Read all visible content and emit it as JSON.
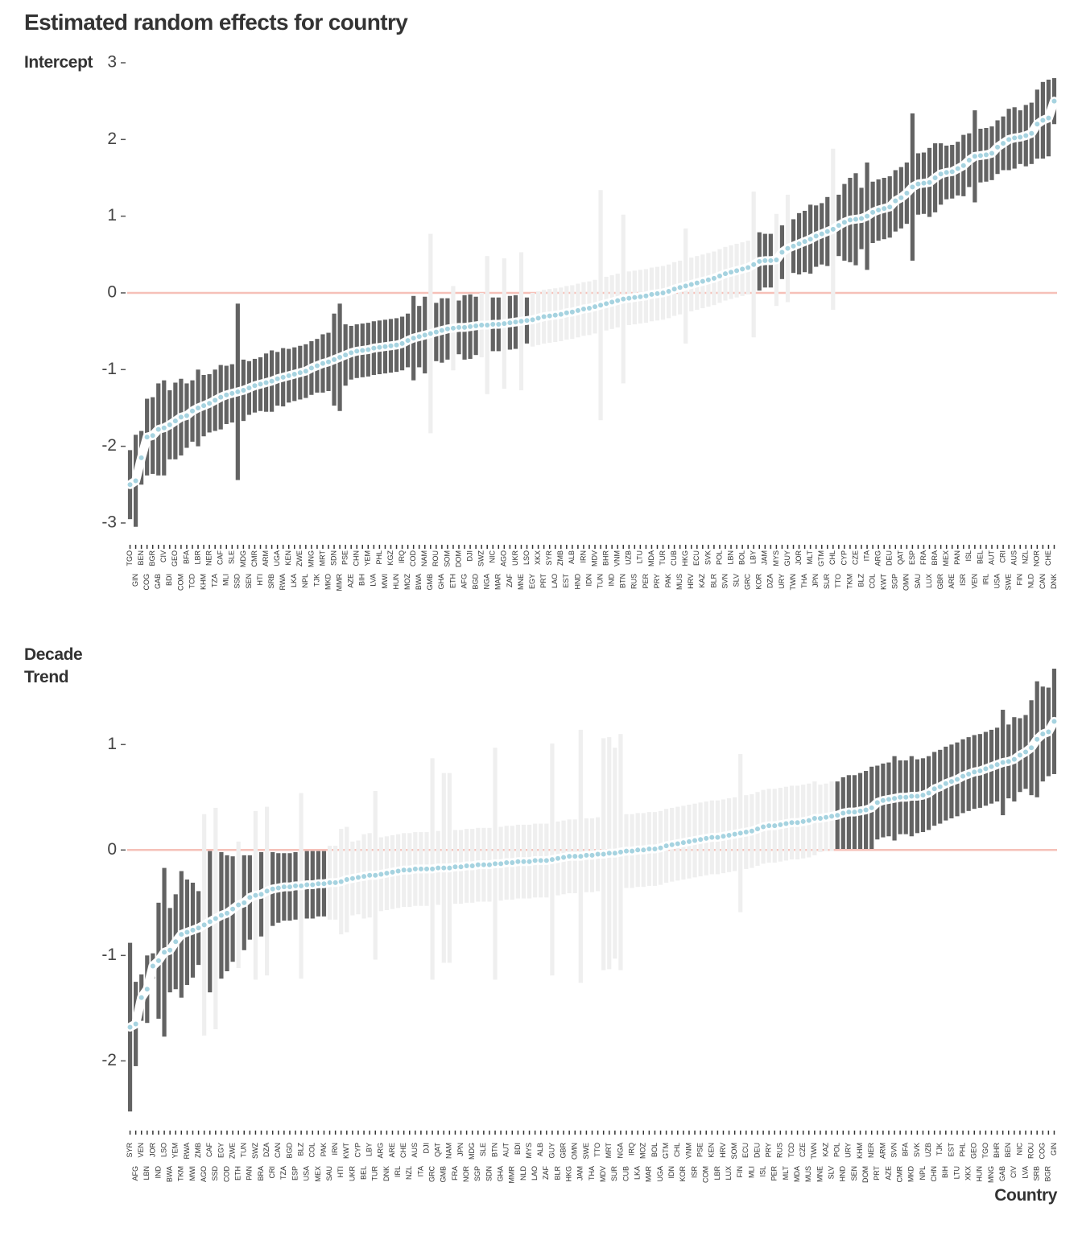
{
  "title": "Estimated random effects for country",
  "chart_data": [
    {
      "type": "point-range",
      "y_label": "Intercept",
      "ylim": [
        -3.2,
        3.0
      ],
      "yticks": [
        -3,
        -2,
        -1,
        0,
        1,
        2,
        3
      ],
      "color_significant": "#636363",
      "color_nonsignificant": "#efefef",
      "point_color": "#a6d3e0",
      "reference_color": "#f6c0b8",
      "categories": [
        "TGO",
        "GIN",
        "BEN",
        "COG",
        "BGR",
        "GAB",
        "CIV",
        "BDI",
        "GEO",
        "COM",
        "BFA",
        "TCD",
        "LBR",
        "KHM",
        "NER",
        "TZA",
        "CAF",
        "MLI",
        "SLE",
        "SSD",
        "MDG",
        "SEN",
        "CMR",
        "HTI",
        "ARM",
        "SRB",
        "UGA",
        "RWA",
        "KEN",
        "LKA",
        "ZWE",
        "NPL",
        "MNG",
        "TJK",
        "MRT",
        "MKD",
        "SDN",
        "MMR",
        "PSE",
        "AZE",
        "CHN",
        "BIH",
        "YEM",
        "LVA",
        "PHL",
        "MWI",
        "KGZ",
        "HUN",
        "IRQ",
        "MOZ",
        "COD",
        "BWA",
        "NAM",
        "GMB",
        "ROU",
        "GHA",
        "SOM",
        "ETH",
        "DOM",
        "AFG",
        "DJI",
        "BGD",
        "SWZ",
        "NGA",
        "NIC",
        "MAR",
        "AGO",
        "ZAF",
        "UKR",
        "MNE",
        "LSO",
        "EGY",
        "XKX",
        "PRT",
        "SYR",
        "LAO",
        "ZMB",
        "EST",
        "ALB",
        "HND",
        "IRN",
        "IDN",
        "MDV",
        "TUN",
        "BHR",
        "IND",
        "VNM",
        "BTN",
        "UZB",
        "RUS",
        "LTU",
        "PER",
        "MDA",
        "PRY",
        "TUR",
        "PAK",
        "CUB",
        "MUS",
        "HKG",
        "HRV",
        "ECU",
        "KAZ",
        "SVK",
        "BLR",
        "POL",
        "SVN",
        "LBN",
        "SLV",
        "BOL",
        "GRC",
        "LBY",
        "KOR",
        "JAM",
        "DZA",
        "MYS",
        "URY",
        "GUY",
        "TWN",
        "JOR",
        "THA",
        "MLT",
        "JPN",
        "GTM",
        "SUR",
        "CHL",
        "TTO",
        "CYP",
        "TKM",
        "CZE",
        "BLZ",
        "ITA",
        "COL",
        "ARG",
        "KWT",
        "DEU",
        "SGP",
        "QAT",
        "OMN",
        "ESP",
        "SAU",
        "FRA",
        "LUX",
        "BRA",
        "GBR",
        "MEX",
        "ARE",
        "PAN",
        "ISR",
        "ISL",
        "VEN",
        "BEL",
        "IRL",
        "AUT",
        "USA",
        "CRI",
        "SWE",
        "AUS",
        "FIN",
        "NZL",
        "NLD",
        "NOR",
        "CAN",
        "CHE",
        "DNK"
      ],
      "values": [
        -2.5,
        -2.45,
        -2.15,
        -1.88,
        -1.86,
        -1.78,
        -1.76,
        -1.72,
        -1.67,
        -1.62,
        -1.6,
        -1.54,
        -1.5,
        -1.47,
        -1.44,
        -1.4,
        -1.36,
        -1.33,
        -1.31,
        -1.29,
        -1.27,
        -1.24,
        -1.21,
        -1.19,
        -1.17,
        -1.15,
        -1.12,
        -1.1,
        -1.08,
        -1.06,
        -1.04,
        -1.02,
        -0.98,
        -0.95,
        -0.92,
        -0.9,
        -0.87,
        -0.84,
        -0.81,
        -0.78,
        -0.76,
        -0.75,
        -0.74,
        -0.72,
        -0.71,
        -0.7,
        -0.69,
        -0.68,
        -0.66,
        -0.62,
        -0.59,
        -0.57,
        -0.55,
        -0.53,
        -0.51,
        -0.49,
        -0.47,
        -0.46,
        -0.45,
        -0.45,
        -0.44,
        -0.43,
        -0.42,
        -0.42,
        -0.41,
        -0.41,
        -0.4,
        -0.39,
        -0.38,
        -0.37,
        -0.36,
        -0.35,
        -0.33,
        -0.31,
        -0.3,
        -0.29,
        -0.28,
        -0.26,
        -0.25,
        -0.23,
        -0.21,
        -0.2,
        -0.18,
        -0.16,
        -0.14,
        -0.12,
        -0.1,
        -0.08,
        -0.07,
        -0.06,
        -0.05,
        -0.04,
        -0.02,
        -0.01,
        0.0,
        0.02,
        0.05,
        0.07,
        0.09,
        0.11,
        0.13,
        0.15,
        0.17,
        0.19,
        0.22,
        0.25,
        0.27,
        0.29,
        0.31,
        0.33,
        0.37,
        0.41,
        0.42,
        0.42,
        0.43,
        0.53,
        0.58,
        0.61,
        0.64,
        0.67,
        0.7,
        0.74,
        0.77,
        0.8,
        0.83,
        0.88,
        0.92,
        0.95,
        0.96,
        0.97,
        1.0,
        1.05,
        1.08,
        1.1,
        1.12,
        1.2,
        1.24,
        1.3,
        1.38,
        1.42,
        1.43,
        1.44,
        1.5,
        1.55,
        1.57,
        1.58,
        1.62,
        1.66,
        1.73,
        1.78,
        1.79,
        1.8,
        1.82,
        1.9,
        1.95,
        2.0,
        2.02,
        2.03,
        2.05,
        2.08,
        2.2,
        2.25,
        2.28,
        2.5
      ],
      "errors": [
        0.45,
        0.6,
        0.35,
        0.5,
        0.5,
        0.6,
        0.62,
        0.45,
        0.5,
        0.5,
        0.42,
        0.4,
        0.5,
        0.4,
        0.38,
        0.4,
        0.42,
        0.38,
        0.38,
        1.15,
        0.4,
        0.35,
        0.35,
        0.35,
        0.38,
        0.4,
        0.35,
        0.38,
        0.35,
        0.35,
        0.35,
        0.35,
        0.35,
        0.35,
        0.38,
        0.38,
        0.6,
        0.7,
        0.4,
        0.35,
        0.35,
        0.35,
        0.35,
        0.35,
        0.35,
        0.35,
        0.35,
        0.35,
        0.35,
        0.35,
        0.55,
        0.4,
        0.5,
        1.3,
        0.38,
        0.42,
        0.4,
        0.55,
        0.35,
        0.42,
        0.42,
        0.38,
        0.42,
        0.9,
        0.35,
        0.35,
        0.85,
        0.35,
        0.35,
        0.9,
        0.3,
        0.35,
        0.35,
        0.35,
        0.35,
        0.35,
        0.35,
        0.35,
        0.35,
        0.35,
        0.35,
        0.35,
        0.35,
        1.5,
        0.35,
        0.35,
        0.35,
        1.1,
        0.35,
        0.35,
        0.35,
        0.35,
        0.35,
        0.35,
        0.35,
        0.35,
        0.35,
        0.35,
        0.75,
        0.35,
        0.35,
        0.35,
        0.35,
        0.35,
        0.35,
        0.35,
        0.35,
        0.35,
        0.35,
        0.35,
        0.95,
        0.38,
        0.35,
        0.35,
        0.6,
        0.35,
        0.7,
        0.35,
        0.4,
        0.4,
        0.45,
        0.4,
        0.4,
        0.45,
        1.05,
        0.4,
        0.5,
        0.55,
        0.6,
        0.4,
        0.7,
        0.4,
        0.4,
        0.4,
        0.4,
        0.4,
        0.4,
        0.4,
        0.96,
        0.4,
        0.4,
        0.45,
        0.45,
        0.4,
        0.35,
        0.35,
        0.35,
        0.4,
        0.35,
        0.6,
        0.35,
        0.35,
        0.35,
        0.35,
        0.35,
        0.4,
        0.4,
        0.35,
        0.4,
        0.4,
        0.45,
        0.5,
        0.5,
        0.3
      ]
    },
    {
      "type": "point-range",
      "y_label": "Decade Trend",
      "x_label": "Country",
      "ylim": [
        -2.6,
        1.75
      ],
      "yticks": [
        -2,
        -1,
        0,
        1
      ],
      "color_significant": "#636363",
      "color_nonsignificant": "#efefef",
      "point_color": "#a6d3e0",
      "reference_color": "#f6c0b8",
      "categories": [
        "SYR",
        "AFG",
        "VEN",
        "LBN",
        "JOR",
        "IND",
        "LSO",
        "BWA",
        "YEM",
        "TKM",
        "RWA",
        "MWI",
        "ZMB",
        "AGO",
        "CAF",
        "SSD",
        "EGY",
        "COD",
        "ZWE",
        "ETH",
        "TUN",
        "PAN",
        "SWZ",
        "BRA",
        "DZA",
        "CRI",
        "CAN",
        "TZA",
        "BGD",
        "ESP",
        "BLZ",
        "USA",
        "COL",
        "MEX",
        "PAK",
        "SAU",
        "IRN",
        "HTI",
        "KWT",
        "UKR",
        "CYP",
        "BEL",
        "LBY",
        "TUR",
        "ARG",
        "DNK",
        "ARE",
        "IRL",
        "CHE",
        "NZL",
        "AUS",
        "ITA",
        "DJI",
        "GRC",
        "QAT",
        "GMB",
        "NAM",
        "FRA",
        "JPN",
        "NOR",
        "MDG",
        "SGP",
        "SLE",
        "SDN",
        "BTN",
        "GHA",
        "AUT",
        "MMR",
        "BDI",
        "NLD",
        "MYS",
        "LAO",
        "ALB",
        "ZAF",
        "GUY",
        "BLR",
        "GBR",
        "HKG",
        "OMN",
        "JAM",
        "SWE",
        "THA",
        "TTO",
        "MDV",
        "MRT",
        "SUR",
        "NGA",
        "CUB",
        "IRQ",
        "LKA",
        "MOZ",
        "MAR",
        "BOL",
        "UGA",
        "GTM",
        "IDN",
        "CHL",
        "KOR",
        "VNM",
        "ISR",
        "PSE",
        "COM",
        "KEN",
        "LBR",
        "HRV",
        "LUX",
        "SOM",
        "FIN",
        "ECU",
        "MLI",
        "DEU",
        "ISL",
        "PRY",
        "PER",
        "RUS",
        "MLT",
        "TCD",
        "MDA",
        "CZE",
        "MUS",
        "TWN",
        "MNE",
        "KAZ",
        "SLV",
        "POL",
        "HND",
        "URY",
        "SEN",
        "KHM",
        "DOM",
        "NER",
        "PRT",
        "ARM",
        "AZE",
        "SVN",
        "CMR",
        "BFA",
        "MKD",
        "SVK",
        "NPL",
        "UZB",
        "CHN",
        "TJK",
        "BIH",
        "EST",
        "LTU",
        "PHL",
        "XKX",
        "GEO",
        "HUN",
        "TGO",
        "MNG",
        "BHR",
        "GAB",
        "BEN",
        "CIV",
        "NIC",
        "LVA",
        "ROU",
        "SRB",
        "COG",
        "BGR",
        "GIN"
      ],
      "values": [
        -1.68,
        -1.65,
        -1.4,
        -1.32,
        -1.1,
        -1.05,
        -0.97,
        -0.95,
        -0.87,
        -0.8,
        -0.78,
        -0.76,
        -0.74,
        -0.71,
        -0.68,
        -0.65,
        -0.62,
        -0.6,
        -0.56,
        -0.52,
        -0.5,
        -0.45,
        -0.43,
        -0.42,
        -0.39,
        -0.37,
        -0.36,
        -0.35,
        -0.35,
        -0.34,
        -0.34,
        -0.33,
        -0.33,
        -0.32,
        -0.32,
        -0.31,
        -0.31,
        -0.3,
        -0.28,
        -0.27,
        -0.26,
        -0.25,
        -0.24,
        -0.24,
        -0.23,
        -0.22,
        -0.21,
        -0.2,
        -0.19,
        -0.19,
        -0.18,
        -0.18,
        -0.18,
        -0.18,
        -0.17,
        -0.17,
        -0.17,
        -0.16,
        -0.16,
        -0.15,
        -0.15,
        -0.14,
        -0.14,
        -0.14,
        -0.13,
        -0.13,
        -0.12,
        -0.12,
        -0.11,
        -0.11,
        -0.11,
        -0.1,
        -0.1,
        -0.1,
        -0.09,
        -0.08,
        -0.07,
        -0.06,
        -0.06,
        -0.06,
        -0.05,
        -0.05,
        -0.04,
        -0.04,
        -0.03,
        -0.03,
        -0.02,
        -0.01,
        -0.01,
        0.0,
        0.0,
        0.01,
        0.01,
        0.02,
        0.04,
        0.05,
        0.06,
        0.07,
        0.08,
        0.09,
        0.1,
        0.11,
        0.12,
        0.12,
        0.13,
        0.14,
        0.15,
        0.16,
        0.17,
        0.18,
        0.2,
        0.22,
        0.23,
        0.23,
        0.24,
        0.25,
        0.26,
        0.26,
        0.27,
        0.28,
        0.3,
        0.3,
        0.31,
        0.32,
        0.33,
        0.35,
        0.36,
        0.36,
        0.37,
        0.38,
        0.4,
        0.45,
        0.47,
        0.48,
        0.49,
        0.5,
        0.5,
        0.51,
        0.51,
        0.52,
        0.54,
        0.58,
        0.6,
        0.63,
        0.65,
        0.67,
        0.7,
        0.72,
        0.74,
        0.75,
        0.77,
        0.79,
        0.81,
        0.83,
        0.84,
        0.86,
        0.9,
        0.93,
        0.97,
        1.05,
        1.1,
        1.12,
        1.22
      ],
      "errors": [
        0.8,
        0.4,
        0.22,
        0.32,
        0.12,
        0.55,
        0.8,
        0.4,
        0.45,
        0.6,
        0.5,
        0.45,
        0.35,
        1.05,
        0.67,
        1.05,
        0.6,
        0.55,
        0.5,
        0.6,
        0.45,
        0.4,
        0.8,
        0.4,
        0.8,
        0.35,
        0.33,
        0.32,
        0.32,
        0.32,
        0.88,
        0.32,
        0.32,
        0.31,
        0.31,
        0.35,
        0.35,
        0.5,
        0.5,
        0.35,
        0.35,
        0.4,
        0.4,
        0.8,
        0.35,
        0.35,
        0.35,
        0.35,
        0.35,
        0.35,
        0.35,
        0.35,
        0.35,
        1.05,
        0.35,
        0.9,
        0.9,
        0.35,
        0.35,
        0.35,
        0.35,
        0.35,
        0.35,
        0.35,
        1.1,
        0.35,
        0.35,
        0.35,
        0.35,
        0.35,
        0.35,
        0.35,
        0.35,
        0.35,
        1.1,
        0.35,
        0.35,
        0.35,
        0.35,
        1.2,
        0.35,
        0.35,
        0.35,
        1.1,
        1.1,
        1.0,
        1.12,
        0.35,
        0.35,
        0.35,
        0.35,
        0.35,
        0.35,
        0.35,
        0.35,
        0.35,
        0.35,
        0.35,
        0.35,
        0.35,
        0.35,
        0.35,
        0.35,
        0.35,
        0.35,
        0.35,
        0.35,
        0.75,
        0.35,
        0.35,
        0.35,
        0.35,
        0.35,
        0.35,
        0.35,
        0.35,
        0.35,
        0.35,
        0.35,
        0.35,
        0.35,
        0.32,
        0.32,
        0.33,
        0.32,
        0.34,
        0.35,
        0.35,
        0.36,
        0.37,
        0.39,
        0.35,
        0.35,
        0.35,
        0.4,
        0.35,
        0.35,
        0.38,
        0.35,
        0.35,
        0.35,
        0.35,
        0.35,
        0.35,
        0.35,
        0.35,
        0.35,
        0.35,
        0.35,
        0.35,
        0.35,
        0.35,
        0.35,
        0.5,
        0.35,
        0.4,
        0.35,
        0.35,
        0.45,
        0.55,
        0.45,
        0.42,
        0.5
      ]
    }
  ]
}
